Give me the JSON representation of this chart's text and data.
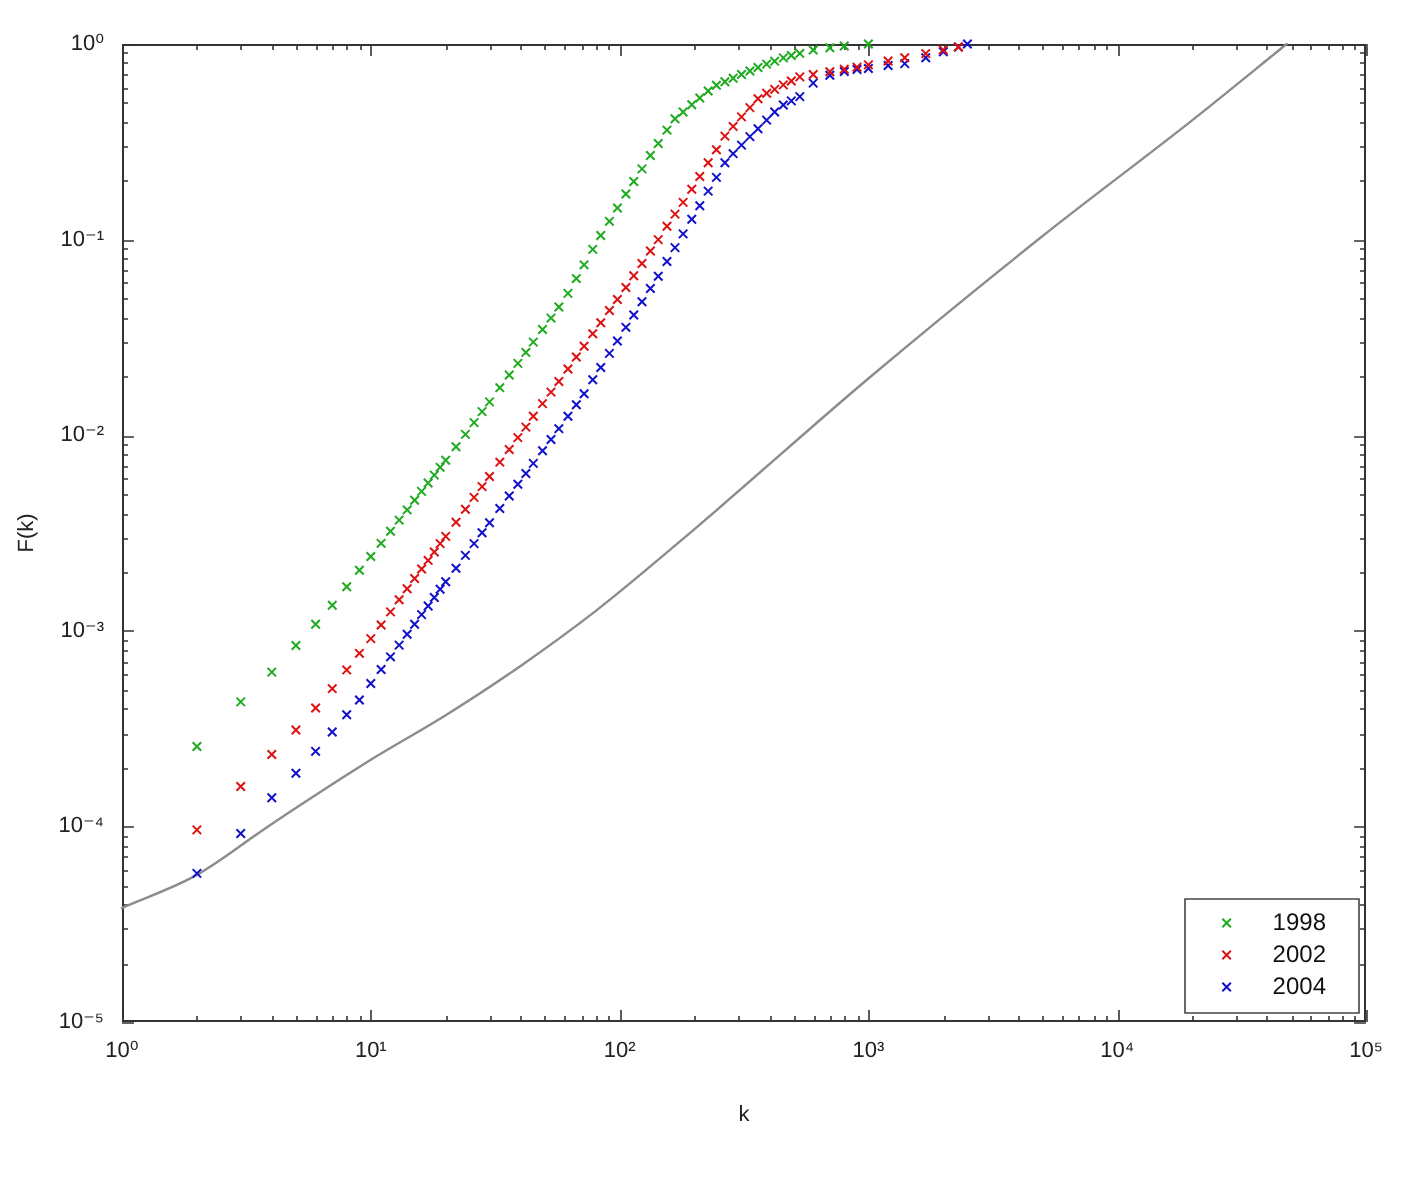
{
  "chart_data": {
    "type": "scatter",
    "xlabel": "k",
    "ylabel": "F(k)",
    "log": "xy",
    "marker": "cross",
    "legend": "bottom right",
    "xlim": [
      1,
      100000
    ],
    "ylim": [
      1e-05,
      1
    ],
    "xticks": [
      {
        "value": 1,
        "label": "10⁰"
      },
      {
        "value": 2,
        "label": null
      },
      {
        "value": 3,
        "label": null
      },
      {
        "value": 4,
        "label": null
      },
      {
        "value": 5,
        "label": null
      },
      {
        "value": 6,
        "label": null
      },
      {
        "value": 7,
        "label": null
      },
      {
        "value": 8,
        "label": null
      },
      {
        "value": 9,
        "label": null
      },
      {
        "value": 10,
        "label": "10¹"
      },
      {
        "value": 20,
        "label": null
      },
      {
        "value": 30,
        "label": null
      },
      {
        "value": 40,
        "label": null
      },
      {
        "value": 50,
        "label": null
      },
      {
        "value": 60,
        "label": null
      },
      {
        "value": 70,
        "label": null
      },
      {
        "value": 80,
        "label": null
      },
      {
        "value": 90,
        "label": null
      },
      {
        "value": 100,
        "label": "10²"
      },
      {
        "value": 200,
        "label": null
      },
      {
        "value": 300,
        "label": null
      },
      {
        "value": 400,
        "label": null
      },
      {
        "value": 500,
        "label": null
      },
      {
        "value": 600,
        "label": null
      },
      {
        "value": 700,
        "label": null
      },
      {
        "value": 800,
        "label": null
      },
      {
        "value": 900,
        "label": null
      },
      {
        "value": 1000,
        "label": "10³"
      },
      {
        "value": 2000,
        "label": null
      },
      {
        "value": 3000,
        "label": null
      },
      {
        "value": 4000,
        "label": null
      },
      {
        "value": 5000,
        "label": null
      },
      {
        "value": 6000,
        "label": null
      },
      {
        "value": 7000,
        "label": null
      },
      {
        "value": 8000,
        "label": null
      },
      {
        "value": 9000,
        "label": null
      },
      {
        "value": 10000,
        "label": "10⁴"
      },
      {
        "value": 20000,
        "label": null
      },
      {
        "value": 30000,
        "label": null
      },
      {
        "value": 40000,
        "label": null
      },
      {
        "value": 50000,
        "label": null
      },
      {
        "value": 60000,
        "label": null
      },
      {
        "value": 70000,
        "label": null
      },
      {
        "value": 80000,
        "label": null
      },
      {
        "value": 90000,
        "label": null
      },
      {
        "value": 100000,
        "label": "10⁵"
      }
    ],
    "yticks": [
      {
        "value": 1e-05,
        "label": "10⁻⁵"
      },
      {
        "value": 2e-05,
        "label": null
      },
      {
        "value": 3e-05,
        "label": null
      },
      {
        "value": 4e-05,
        "label": null
      },
      {
        "value": 5e-05,
        "label": null
      },
      {
        "value": 6e-05,
        "label": null
      },
      {
        "value": 7e-05,
        "label": null
      },
      {
        "value": 8e-05,
        "label": null
      },
      {
        "value": 9e-05,
        "label": null
      },
      {
        "value": 0.0001,
        "label": "10⁻⁴"
      },
      {
        "value": 0.0002,
        "label": null
      },
      {
        "value": 0.0003,
        "label": null
      },
      {
        "value": 0.0004,
        "label": null
      },
      {
        "value": 0.0005,
        "label": null
      },
      {
        "value": 0.0006,
        "label": null
      },
      {
        "value": 0.0007,
        "label": null
      },
      {
        "value": 0.0008,
        "label": null
      },
      {
        "value": 0.0009,
        "label": null
      },
      {
        "value": 0.001,
        "label": "10⁻³"
      },
      {
        "value": 0.002,
        "label": null
      },
      {
        "value": 0.003,
        "label": null
      },
      {
        "value": 0.004,
        "label": null
      },
      {
        "value": 0.005,
        "label": null
      },
      {
        "value": 0.006,
        "label": null
      },
      {
        "value": 0.007,
        "label": null
      },
      {
        "value": 0.008,
        "label": null
      },
      {
        "value": 0.009,
        "label": null
      },
      {
        "value": 0.01,
        "label": "10⁻²"
      },
      {
        "value": 0.02,
        "label": null
      },
      {
        "value": 0.03,
        "label": null
      },
      {
        "value": 0.04,
        "label": null
      },
      {
        "value": 0.05,
        "label": null
      },
      {
        "value": 0.06,
        "label": null
      },
      {
        "value": 0.07,
        "label": null
      },
      {
        "value": 0.08,
        "label": null
      },
      {
        "value": 0.09,
        "label": null
      },
      {
        "value": 0.1,
        "label": "10⁻¹"
      },
      {
        "value": 0.2,
        "label": null
      },
      {
        "value": 0.3,
        "label": null
      },
      {
        "value": 0.4,
        "label": null
      },
      {
        "value": 0.5,
        "label": null
      },
      {
        "value": 0.6,
        "label": null
      },
      {
        "value": 0.7,
        "label": null
      },
      {
        "value": 0.8,
        "label": null
      },
      {
        "value": 0.9,
        "label": null
      },
      {
        "value": 1,
        "label": "10⁰"
      }
    ],
    "series": [
      {
        "name": "1998",
        "color": "#1faa1f",
        "x": [
          2,
          3,
          4,
          5,
          6,
          7,
          8,
          9,
          10,
          11,
          12,
          13,
          14,
          15,
          16,
          17,
          18,
          19,
          20,
          22,
          24,
          26,
          28,
          30,
          33,
          36,
          39,
          42,
          45,
          49,
          53,
          57,
          62,
          67,
          72,
          78,
          84,
          91,
          98,
          106,
          114,
          123,
          133,
          143,
          155,
          167,
          180,
          195,
          210,
          227,
          245,
          265,
          286,
          309,
          334,
          360,
          390,
          420,
          455,
          490,
          530,
          600,
          700,
          800,
          1000
        ],
        "values": [
          0.000256,
          0.000433,
          0.000615,
          0.000841,
          0.00108,
          0.00135,
          0.00168,
          0.00204,
          0.0024,
          0.0028,
          0.00323,
          0.00368,
          0.00415,
          0.00465,
          0.00516,
          0.0057,
          0.00625,
          0.00685,
          0.00745,
          0.00873,
          0.0101,
          0.0116,
          0.0132,
          0.0148,
          0.0175,
          0.0203,
          0.0233,
          0.0265,
          0.0299,
          0.0347,
          0.0397,
          0.0452,
          0.0531,
          0.0632,
          0.0743,
          0.0891,
          0.105,
          0.124,
          0.145,
          0.171,
          0.198,
          0.23,
          0.269,
          0.31,
          0.363,
          0.415,
          0.449,
          0.489,
          0.53,
          0.575,
          0.615,
          0.641,
          0.668,
          0.698,
          0.728,
          0.759,
          0.789,
          0.817,
          0.849,
          0.873,
          0.895,
          0.931,
          0.957,
          0.977,
          1.0
        ]
      },
      {
        "name": "2002",
        "color": "#dd1111",
        "x": [
          2,
          3,
          4,
          5,
          6,
          7,
          8,
          9,
          10,
          11,
          12,
          13,
          14,
          15,
          16,
          17,
          18,
          19,
          20,
          22,
          24,
          26,
          28,
          30,
          33,
          36,
          39,
          42,
          45,
          49,
          53,
          57,
          62,
          67,
          72,
          78,
          84,
          91,
          98,
          106,
          114,
          123,
          133,
          143,
          155,
          167,
          180,
          195,
          210,
          227,
          245,
          265,
          286,
          309,
          334,
          360,
          390,
          420,
          455,
          490,
          530,
          600,
          700,
          800,
          900,
          1000,
          1200,
          1400,
          1700,
          2000,
          2300
        ],
        "values": [
          9.6e-05,
          0.00016,
          0.000233,
          0.000311,
          0.000403,
          0.000506,
          0.000631,
          0.000767,
          0.000912,
          0.00107,
          0.00125,
          0.00144,
          0.00164,
          0.00185,
          0.00207,
          0.00229,
          0.00253,
          0.00279,
          0.00304,
          0.00359,
          0.00418,
          0.00481,
          0.00546,
          0.00615,
          0.00728,
          0.00845,
          0.00972,
          0.011,
          0.0125,
          0.0145,
          0.0166,
          0.0188,
          0.0218,
          0.0251,
          0.0285,
          0.033,
          0.0376,
          0.0434,
          0.0494,
          0.0569,
          0.0653,
          0.0755,
          0.0875,
          0.1,
          0.117,
          0.135,
          0.155,
          0.181,
          0.21,
          0.247,
          0.288,
          0.338,
          0.379,
          0.424,
          0.473,
          0.525,
          0.56,
          0.586,
          0.618,
          0.647,
          0.679,
          0.698,
          0.721,
          0.743,
          0.76,
          0.782,
          0.818,
          0.851,
          0.893,
          0.931,
          0.966
        ]
      },
      {
        "name": "2004",
        "color": "#1111cc",
        "x": [
          2,
          3,
          4,
          5,
          6,
          7,
          8,
          9,
          10,
          11,
          12,
          13,
          14,
          15,
          16,
          17,
          18,
          19,
          20,
          22,
          24,
          26,
          28,
          30,
          33,
          36,
          39,
          42,
          45,
          49,
          53,
          57,
          62,
          67,
          72,
          78,
          84,
          91,
          98,
          106,
          114,
          123,
          133,
          143,
          155,
          167,
          180,
          195,
          210,
          227,
          245,
          265,
          286,
          309,
          334,
          360,
          390,
          420,
          455,
          490,
          530,
          600,
          700,
          800,
          900,
          1000,
          1200,
          1400,
          1700,
          2000,
          2300,
          2500
        ],
        "values": [
          5.75e-05,
          9.2e-05,
          0.00014,
          0.000187,
          0.000242,
          0.000304,
          0.000372,
          0.000443,
          0.000538,
          0.000634,
          0.000736,
          0.000845,
          0.000961,
          0.00108,
          0.00121,
          0.00134,
          0.00148,
          0.00163,
          0.00178,
          0.00209,
          0.00243,
          0.00279,
          0.00317,
          0.00357,
          0.00422,
          0.00489,
          0.00561,
          0.00637,
          0.00718,
          0.00832,
          0.00951,
          0.0108,
          0.0125,
          0.0143,
          0.0163,
          0.0192,
          0.0222,
          0.0262,
          0.0303,
          0.0356,
          0.0412,
          0.0481,
          0.0562,
          0.065,
          0.0773,
          0.091,
          0.107,
          0.127,
          0.149,
          0.177,
          0.208,
          0.247,
          0.275,
          0.304,
          0.336,
          0.369,
          0.408,
          0.449,
          0.488,
          0.512,
          0.538,
          0.631,
          0.692,
          0.724,
          0.741,
          0.75,
          0.776,
          0.794,
          0.851,
          0.912,
          0.966,
          1.0
        ]
      },
      {
        "type": "line",
        "marker": "none",
        "color": "#8c8c8c",
        "x": [
          1,
          2,
          4,
          10,
          20,
          40,
          80,
          200,
          1000,
          5000,
          20000,
          48000
        ],
        "values": [
          3.83e-05,
          5.65e-05,
          0.000103,
          0.000219,
          0.00037,
          0.000661,
          0.00126,
          0.00331,
          0.0195,
          0.104,
          0.407,
          1.0
        ]
      }
    ]
  }
}
